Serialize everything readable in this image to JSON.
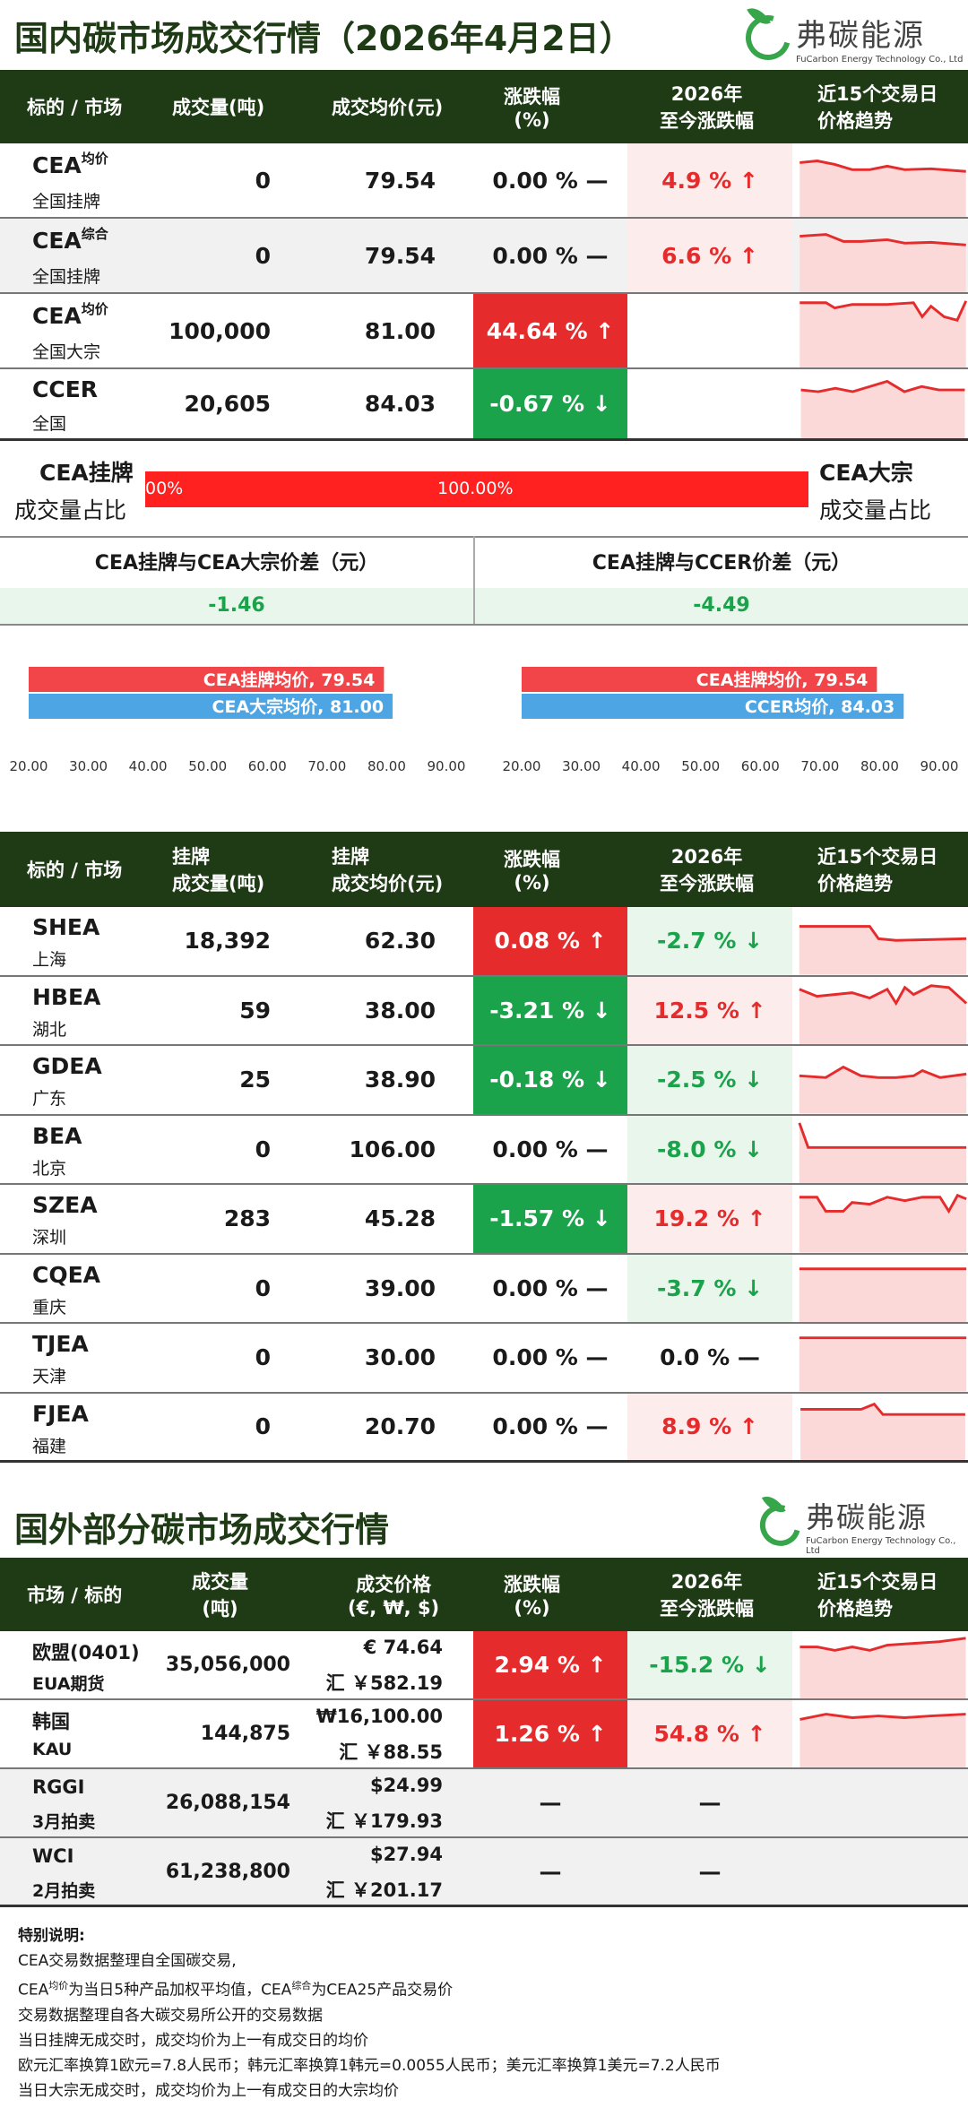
{
  "domestic": {
    "title": "国内碳市场成交行情（2026年4月2日）",
    "logo": {
      "cn": "弗碳能源",
      "en": "FuCarbon Energy Technology Co., Ltd"
    },
    "header": {
      "c1": "标的 / 市场",
      "c2": "成交量(吨)",
      "c3": "成交均价(元)",
      "c4a": "涨跌幅",
      "c4b": "(%)",
      "c5a": "2026年",
      "c5b": "至今涨跌幅",
      "c6a": "近15个交易日",
      "c6b": "价格趋势"
    },
    "rows": [
      {
        "sym": "CEA",
        "sup": "均价",
        "sub": "全国挂牌",
        "vol": "0",
        "price": "79.54",
        "chg": "0.00 % —",
        "ytd": "4.9 % ↑"
      },
      {
        "sym": "CEA",
        "sup": "综合",
        "sub": "全国挂牌",
        "vol": "0",
        "price": "79.54",
        "chg": "0.00 % —",
        "ytd": "6.6 % ↑"
      },
      {
        "sym": "CEA",
        "sup": "均价",
        "sub": "全国大宗",
        "vol": "100,000",
        "price": "81.00",
        "chg": "44.64 % ↑",
        "ytd": ""
      },
      {
        "sym": "CCER",
        "sup": "",
        "sub": "全国",
        "vol": "20,605",
        "price": "84.03",
        "chg": "-0.67 % ↓",
        "ytd": ""
      }
    ],
    "share": {
      "left1": "CEA挂牌",
      "left2": "成交量占比",
      "right1": "CEA大宗",
      "right2": "成交量占比",
      "bar_left": "00%",
      "bar_mid": "100.00%",
      "share_value": 100
    },
    "spread": {
      "label1": "CEA挂牌与CEA大宗价差（元）",
      "value1": "-1.46",
      "label2": "CEA挂牌与CCER价差（元）",
      "value2": "-4.49"
    },
    "bars1": {
      "a": "CEA挂牌均价, 79.54",
      "b": "CEA大宗均价, 81.00",
      "va": 79.54,
      "vb": 81.0,
      "ticks": [
        "20.00",
        "30.00",
        "40.00",
        "50.00",
        "60.00",
        "70.00",
        "80.00",
        "90.00"
      ]
    },
    "bars2": {
      "a": "CEA挂牌均价, 79.54",
      "b": "CCER均价, 84.03",
      "va": 79.54,
      "vb": 84.03,
      "ticks": [
        "20.00",
        "30.00",
        "40.00",
        "50.00",
        "60.00",
        "70.00",
        "80.00",
        "90.00"
      ]
    }
  },
  "regional": {
    "header": {
      "c1": "标的 / 市场",
      "c2a": "挂牌",
      "c2b": "成交量(吨)",
      "c3a": "挂牌",
      "c3b": "成交均价(元)",
      "c4a": "涨跌幅",
      "c4b": "(%)",
      "c5a": "2026年",
      "c5b": "至今涨跌幅",
      "c6a": "近15个交易日",
      "c6b": "价格趋势"
    },
    "rows": [
      {
        "sym": "SHEA",
        "sub": "上海",
        "vol": "18,392",
        "price": "62.30",
        "chg": "0.08 % ↑",
        "ytd": "-2.7 % ↓"
      },
      {
        "sym": "HBEA",
        "sub": "湖北",
        "vol": "59",
        "price": "38.00",
        "chg": "-3.21 % ↓",
        "ytd": "12.5 % ↑"
      },
      {
        "sym": "GDEA",
        "sub": "广东",
        "vol": "25",
        "price": "38.90",
        "chg": "-0.18 % ↓",
        "ytd": "-2.5 % ↓"
      },
      {
        "sym": "BEA",
        "sub": "北京",
        "vol": "0",
        "price": "106.00",
        "chg": "0.00 % —",
        "ytd": "-8.0 % ↓"
      },
      {
        "sym": "SZEA",
        "sub": "深圳",
        "vol": "283",
        "price": "45.28",
        "chg": "-1.57 % ↓",
        "ytd": "19.2 % ↑"
      },
      {
        "sym": "CQEA",
        "sub": "重庆",
        "vol": "0",
        "price": "39.00",
        "chg": "0.00 % —",
        "ytd": "-3.7 % ↓"
      },
      {
        "sym": "TJEA",
        "sub": "天津",
        "vol": "0",
        "price": "30.00",
        "chg": "0.00 % —",
        "ytd": "0.0 % —"
      },
      {
        "sym": "FJEA",
        "sub": "福建",
        "vol": "0",
        "price": "20.70",
        "chg": "0.00 % —",
        "ytd": "8.9 % ↑"
      }
    ]
  },
  "foreign": {
    "title": "国外部分碳市场成交行情",
    "logo": {
      "cn": "弗碳能源",
      "en": "FuCarbon Energy Technology Co., Ltd"
    },
    "header": {
      "c1": "市场 / 标的",
      "c2a": "成交量",
      "c2b": "(吨)",
      "c3a": "成交价格",
      "c3b": "(€, ₩, $)",
      "c4a": "涨跌幅",
      "c4b": "(%)",
      "c5a": "2026年",
      "c5b": "至今涨跌幅",
      "c6a": "近15个交易日",
      "c6b": "价格趋势"
    },
    "rows": [
      {
        "sym": "欧盟(0401)",
        "sub": "EUA期货",
        "vol": "35,056,000",
        "price": "€ 74.64",
        "rmb": "汇 ￥582.19",
        "chg": "2.94 % ↑",
        "ytd": "-15.2 % ↓"
      },
      {
        "sym": "韩国",
        "sub": "KAU",
        "vol": "144,875",
        "price": "₩16,100.00",
        "rmb": "汇 ￥88.55",
        "chg": "1.26 % ↑",
        "ytd": "54.8 % ↑"
      },
      {
        "sym": "RGGI",
        "sub": "3月拍卖",
        "vol": "26,088,154",
        "price": "$24.99",
        "rmb": "汇 ￥179.93",
        "chg": "—",
        "ytd": "—"
      },
      {
        "sym": "WCI",
        "sub": "2月拍卖",
        "vol": "61,238,800",
        "price": "$27.94",
        "rmb": "汇 ￥201.17",
        "chg": "—",
        "ytd": "—"
      }
    ]
  },
  "notes": {
    "title": "特别说明:",
    "l1": "CEA交易数据整理自全国碳交易,",
    "l2a": "CEA",
    "l2sup1": "均价",
    "l2b": "为当日5种产品加权平均值，CEA",
    "l2sup2": "综合",
    "l2c": "为CEA25产品交易价",
    "l3": "交易数据整理自各大碳交易所公开的交易数据",
    "l4": "当日挂牌无成交时，成交均价为上一有成交日的均价",
    "l5": "欧元汇率换算1欧元=7.8人民币；韩元汇率换算1韩元=0.0055人民币；美元汇率换算1美元=7.2人民币",
    "l6": "当日大宗无成交时，成交均价为上一有成交日的大宗均价"
  },
  "colors": {
    "green_dark": "#1f3b16",
    "up": "#e52b2b",
    "down": "#1aa34a"
  }
}
